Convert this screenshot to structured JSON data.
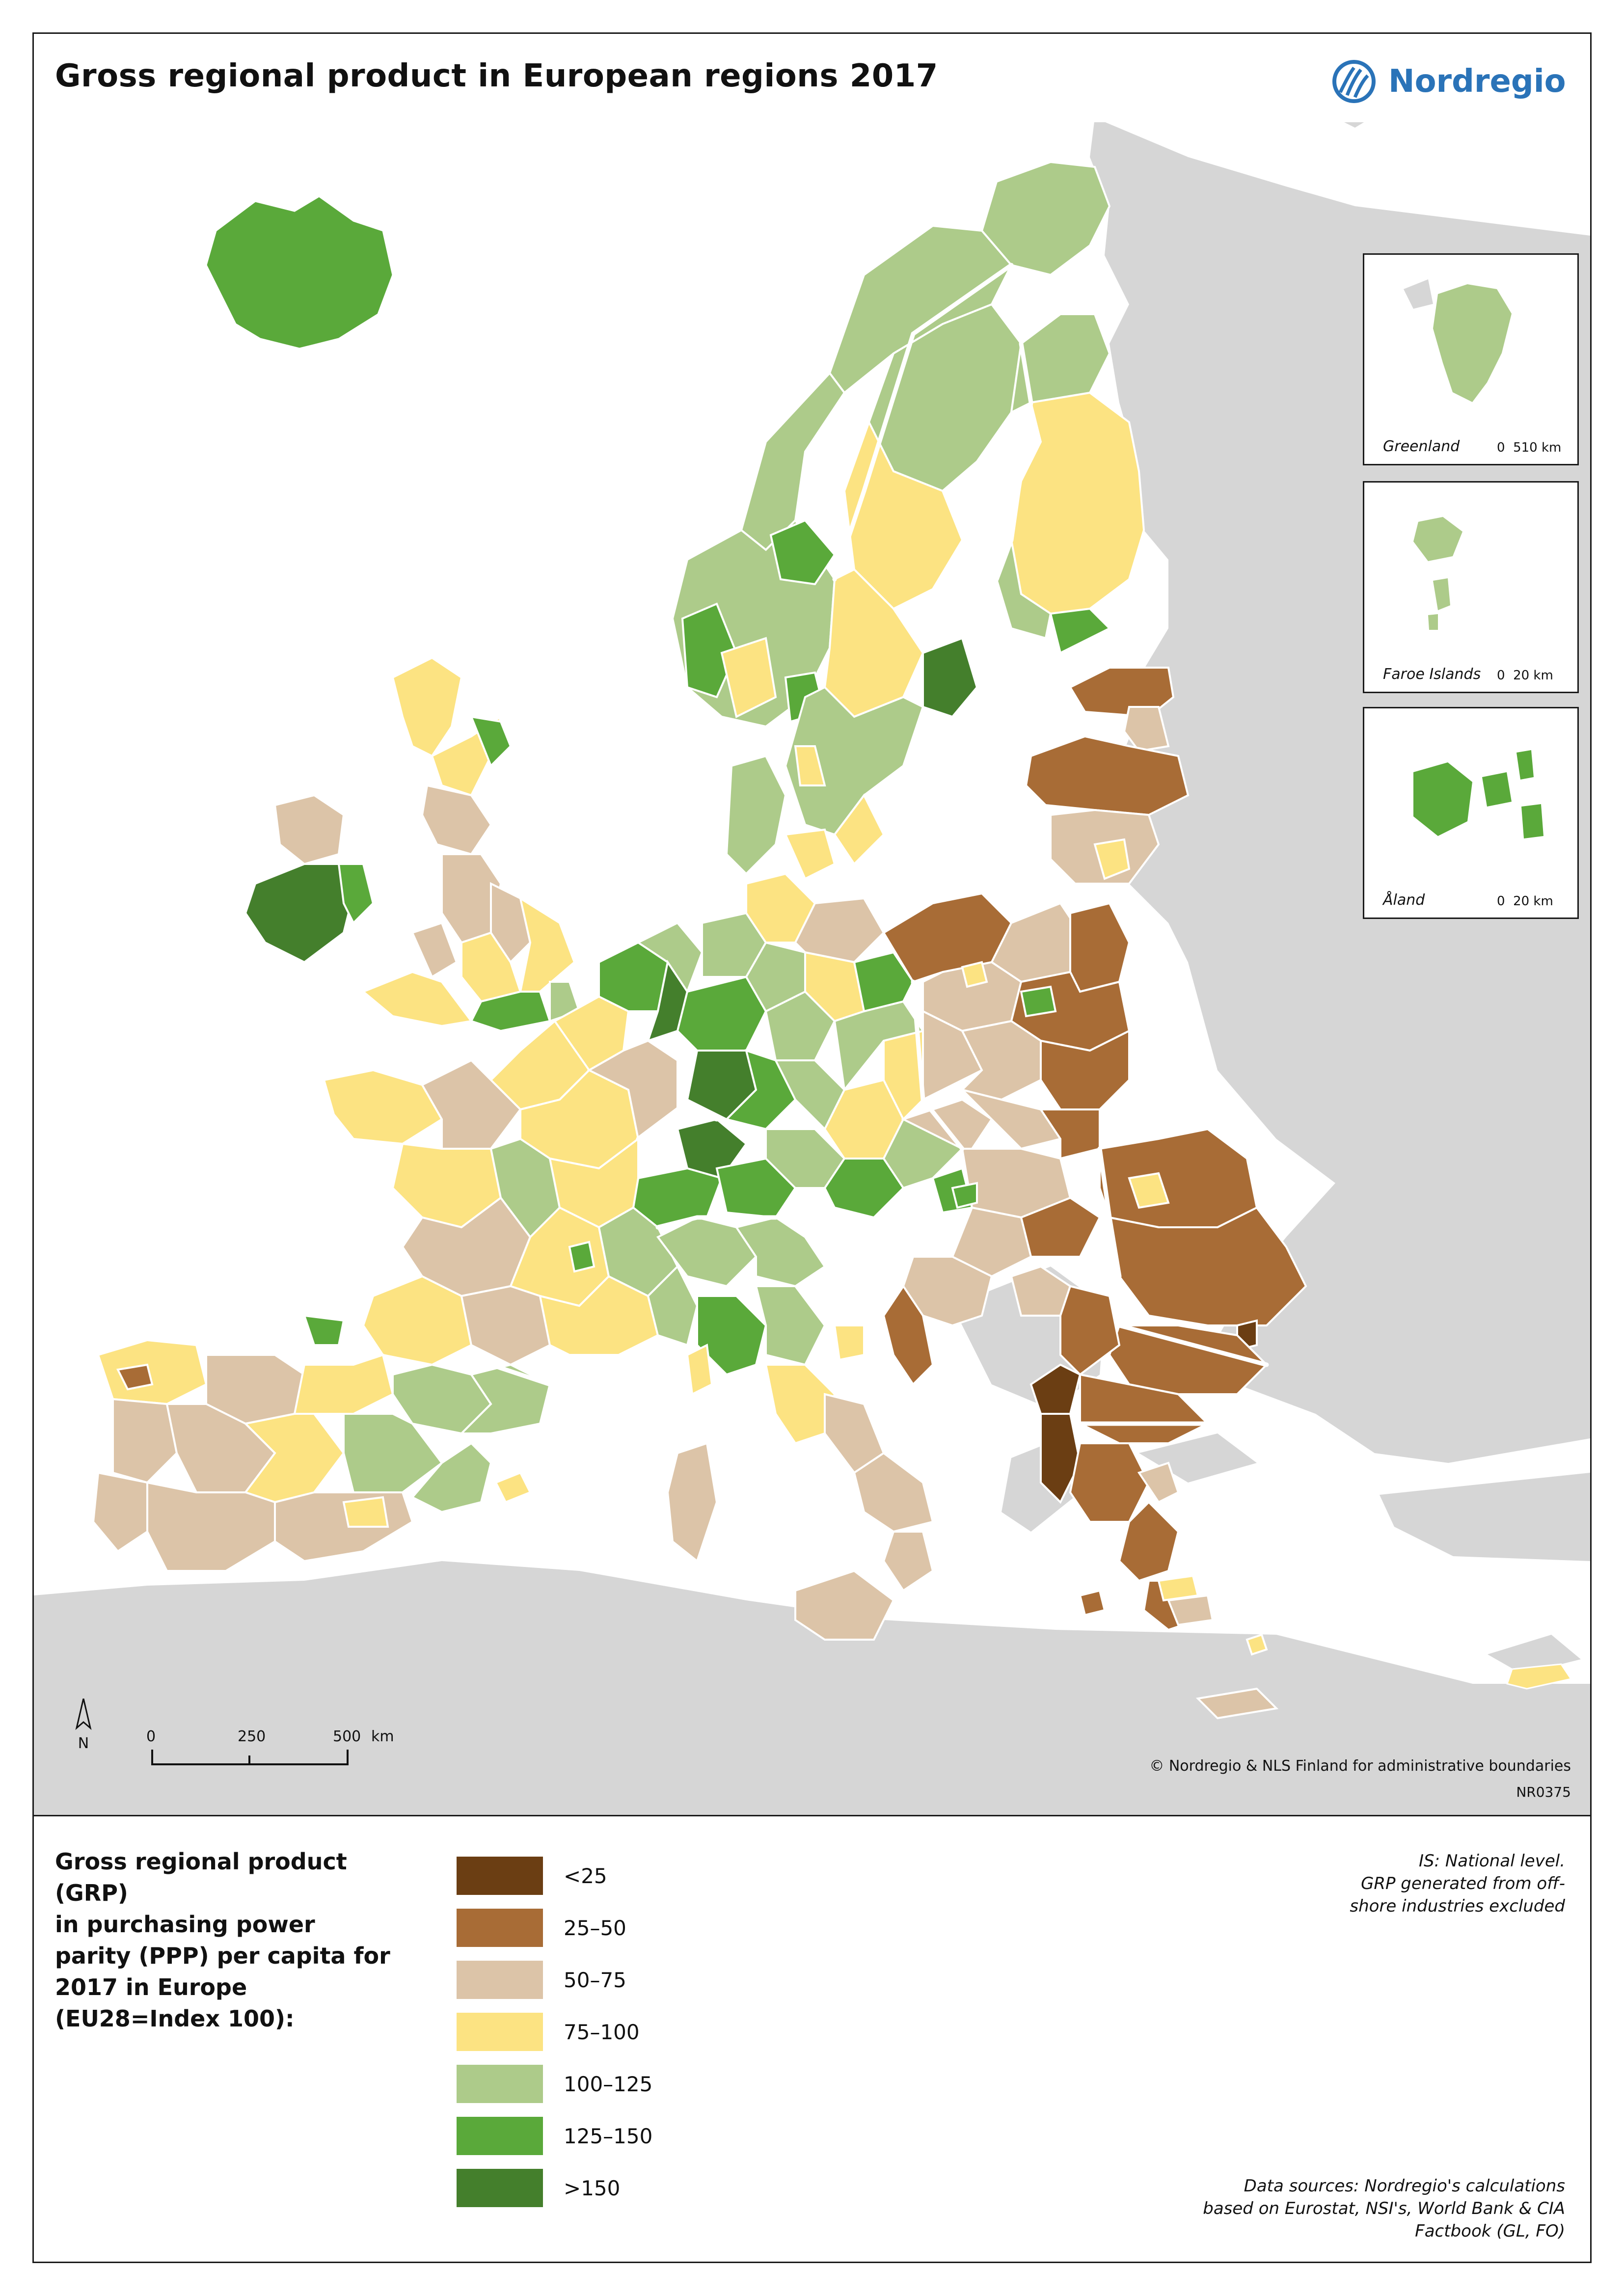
{
  "title": "Gross regional product in European regions 2017",
  "brand": {
    "name": "Nordregio",
    "color": "#2a73b8"
  },
  "legend": {
    "title_lines": [
      "Gross regional product (GRP)",
      "in purchasing power",
      "parity (PPP) per capita for",
      "2017 in Europe",
      "(EU28=Index 100):"
    ],
    "classes": [
      {
        "label": "<25",
        "color": "#6b3e13"
      },
      {
        "label": "25–50",
        "color": "#a86c36"
      },
      {
        "label": "50–75",
        "color": "#dcc4a8"
      },
      {
        "label": "75–100",
        "color": "#fce382"
      },
      {
        "label": "100–125",
        "color": "#adcb8a"
      },
      {
        "label": "125–150",
        "color": "#5aa93a"
      },
      {
        "label": ">150",
        "color": "#447f2c"
      }
    ]
  },
  "insets": [
    {
      "name": "Greenland",
      "scale_zero": "0",
      "scale_value": "510 km"
    },
    {
      "name": "Faroe Islands",
      "scale_zero": "0",
      "scale_value": "20 km"
    },
    {
      "name": "Åland",
      "scale_zero": "0",
      "scale_value": "20 km"
    }
  ],
  "scalebar": {
    "ticks": [
      "0",
      "250",
      "500"
    ],
    "unit": "km"
  },
  "north_label": "N",
  "notes": [
    "IS: National level.",
    "GRP generated from off-",
    "shore industries excluded"
  ],
  "copyright": "© Nordregio & NLS Finland for administrative boundaries",
  "map_code": "NR0375",
  "sources": [
    "Data sources: Nordregio's calculations",
    "based on Eurostat, NSI's, World Bank & CIA",
    "Factbook (GL, FO)"
  ],
  "colors": {
    "sea": "#ffffff",
    "non_covered_land": "#d6d6d6",
    "borders": "#ffffff"
  }
}
